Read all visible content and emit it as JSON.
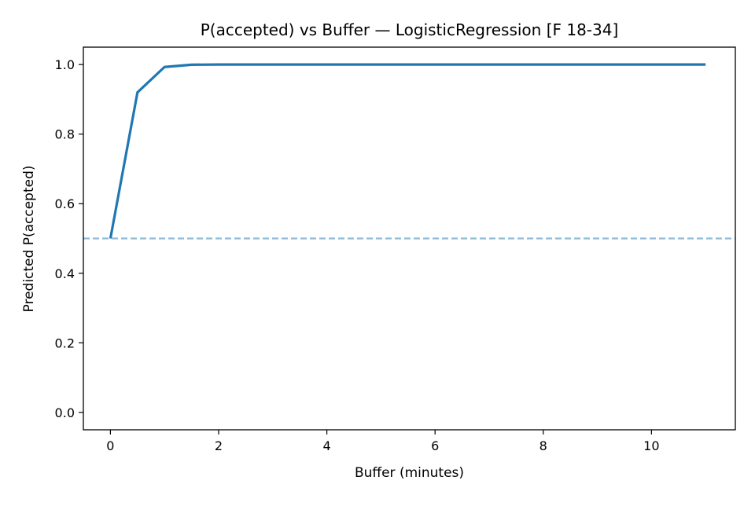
{
  "chart_data": {
    "type": "line",
    "title": "P(accepted) vs Buffer — LogisticRegression [F 18-34]",
    "xlabel": "Buffer (minutes)",
    "ylabel": "Predicted P(accepted)",
    "xlim": [
      -0.5,
      11.55
    ],
    "ylim": [
      -0.05,
      1.05
    ],
    "xticks": [
      0,
      2,
      4,
      6,
      8,
      10
    ],
    "xtick_labels": [
      "0",
      "2",
      "4",
      "6",
      "8",
      "10"
    ],
    "yticks": [
      0.0,
      0.2,
      0.4,
      0.6,
      0.8,
      1.0
    ],
    "ytick_labels": [
      "0.0",
      "0.2",
      "0.4",
      "0.6",
      "0.8",
      "1.0"
    ],
    "grid": false,
    "series": [
      {
        "color": "#1f77b4",
        "x": [
          0,
          0.5,
          1.0,
          1.5,
          2.0,
          2.5,
          3.0,
          3.5,
          4.0,
          4.5,
          5.0,
          5.5,
          6.0,
          6.5,
          7.0,
          7.5,
          8.0,
          8.5,
          9.0,
          9.5,
          10.0,
          10.5,
          11.0
        ],
        "y": [
          0.5,
          0.92,
          0.993,
          0.9995,
          1.0,
          1.0,
          1.0,
          1.0,
          1.0,
          1.0,
          1.0,
          1.0,
          1.0,
          1.0,
          1.0,
          1.0,
          1.0,
          1.0,
          1.0,
          1.0,
          1.0,
          1.0,
          1.0
        ]
      }
    ],
    "reference_lines": [
      {
        "orientation": "horizontal",
        "y": 0.5,
        "style": "dashed",
        "color": "#1f77b4",
        "alpha": 0.5
      }
    ]
  }
}
